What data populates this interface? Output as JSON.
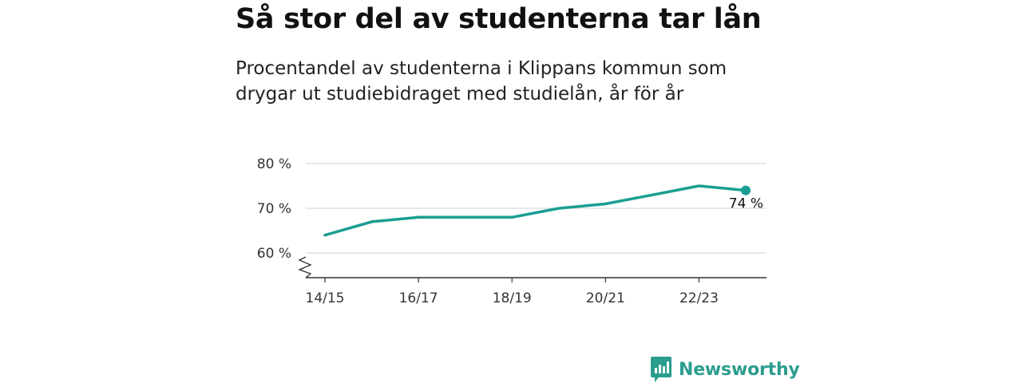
{
  "header": {
    "title": "Så stor del av studenterna tar lån",
    "subtitle": "Procentandel av studenterna i Klippans kommun som drygar ut studiebidraget med studielån, år för år"
  },
  "chart_data": {
    "type": "line",
    "title": "Så stor del av studenterna tar lån",
    "subtitle": "Procentandel av studenterna i Klippans kommun som drygar ut studiebidraget med studielån, år för år",
    "x": [
      "14/15",
      "15/16",
      "16/17",
      "17/18",
      "18/19",
      "19/20",
      "20/21",
      "21/22",
      "22/23",
      "23/24"
    ],
    "x_tick_labels": [
      "14/15",
      "16/17",
      "18/19",
      "20/21",
      "22/23"
    ],
    "series": [
      {
        "values": [
          64,
          67,
          68,
          68,
          68,
          70,
          71,
          73,
          75,
          74
        ]
      }
    ],
    "y_ticks": [
      60,
      70,
      80
    ],
    "y_tick_labels": [
      "60 %",
      "70 %",
      "80 %"
    ],
    "ylim": [
      54.5,
      80
    ],
    "y_axis_break": true,
    "grid": true,
    "last_value_label": "74 %",
    "colors": {
      "line": "#1a9e92",
      "grid": "#d9d9e0",
      "axis": "#333333"
    }
  },
  "brand": {
    "name": "Newsworthy",
    "icon": "newsworthy-logo-icon",
    "color": "#2b9d8f"
  }
}
